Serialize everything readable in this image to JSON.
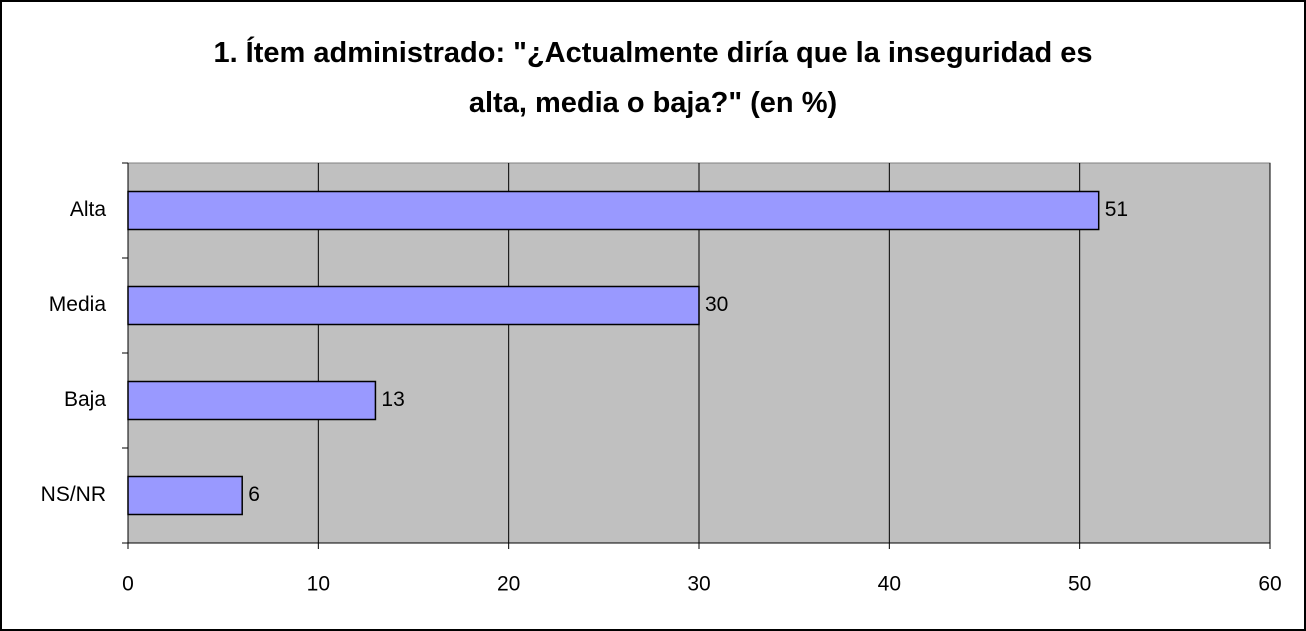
{
  "chart_data": {
    "type": "bar",
    "orientation": "horizontal",
    "title": "1. Ítem administrado: \"¿Actualmente diría que la inseguridad es alta, media o baja?\" (en %)",
    "categories": [
      "Alta",
      "Media",
      "Baja",
      "NS/NR"
    ],
    "values": [
      51,
      30,
      13,
      6
    ],
    "color": "#9999ff",
    "xlim": [
      0,
      60
    ],
    "xticks": [
      0,
      10,
      20,
      30,
      40,
      50,
      60
    ],
    "grid": true
  }
}
